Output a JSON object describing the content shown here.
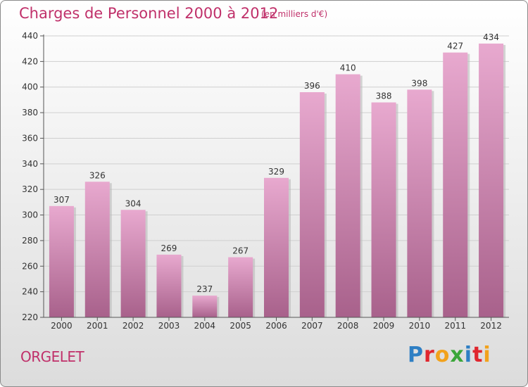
{
  "title": "Charges de Personnel 2000 à 2012",
  "subtitle": "(en milliers d'€)",
  "commune": "ORGELET",
  "logo": {
    "letters": [
      {
        "ch": "P",
        "color": "#2e7fc4"
      },
      {
        "ch": "r",
        "color": "#e0262e"
      },
      {
        "ch": "o",
        "color": "#f2a21c"
      },
      {
        "ch": "x",
        "color": "#3aa639"
      },
      {
        "ch": "i",
        "color": "#2e7fc4"
      },
      {
        "ch": "t",
        "color": "#e0262e"
      },
      {
        "ch": "i",
        "color": "#f2a21c"
      }
    ]
  },
  "colors": {
    "bar_top": "#e8a9cf",
    "bar_bottom": "#a8618b",
    "accent": "#c0306a"
  },
  "chart_data": {
    "type": "bar",
    "categories": [
      "2000",
      "2001",
      "2002",
      "2003",
      "2004",
      "2005",
      "2006",
      "2007",
      "2008",
      "2009",
      "2010",
      "2011",
      "2012"
    ],
    "values": [
      307,
      326,
      304,
      269,
      237,
      267,
      329,
      396,
      410,
      388,
      398,
      427,
      434
    ],
    "ylim": [
      220,
      440
    ],
    "yticks": [
      220,
      240,
      260,
      280,
      300,
      320,
      340,
      360,
      380,
      400,
      420,
      440
    ],
    "grid": true
  }
}
